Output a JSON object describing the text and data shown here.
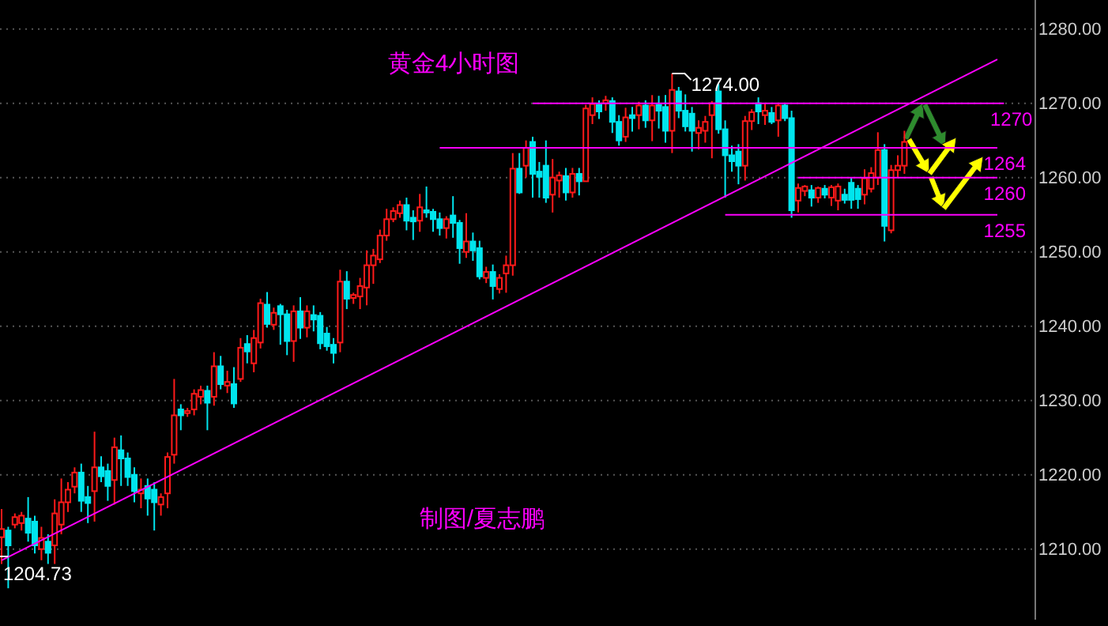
{
  "chart_data": {
    "type": "candlestick",
    "title": "黄金4小时图",
    "categories": [
      null,
      null,
      null,
      null,
      null,
      null,
      null,
      null,
      null,
      null,
      null,
      null,
      null,
      null,
      null,
      null,
      null,
      null,
      null,
      null,
      null,
      null,
      null,
      null,
      null,
      null,
      null,
      null,
      null,
      null,
      null,
      null,
      null,
      null,
      null,
      null,
      null,
      null,
      null,
      null,
      null,
      null,
      null,
      null,
      null,
      null,
      null,
      null,
      null,
      null,
      null,
      null,
      null,
      null,
      null,
      null,
      null,
      null,
      null,
      null,
      null,
      null,
      null,
      null,
      null,
      null,
      null,
      null,
      null,
      null,
      null,
      null,
      null,
      null,
      null,
      null,
      null,
      null,
      null,
      null,
      null,
      null,
      null,
      null,
      null,
      null,
      null,
      null,
      null,
      null,
      null,
      null,
      null,
      null,
      null,
      null,
      null,
      null,
      null,
      null,
      null,
      null,
      null,
      null,
      null,
      null,
      null,
      null,
      null,
      null,
      null,
      null,
      null,
      null,
      null,
      null,
      null,
      null,
      null,
      null,
      null,
      null,
      null,
      null,
      null,
      null,
      null,
      null,
      null,
      null,
      null,
      null,
      null,
      null,
      null,
      null,
      null,
      null,
      null,
      null,
      null,
      null,
      null,
      null,
      null,
      null,
      null,
      null,
      null,
      null,
      null,
      null,
      null,
      null,
      null,
      null
    ],
    "ohlc": [
      [
        1211.6,
        1215.4,
        1208,
        1212.7
      ],
      [
        1212.5,
        1213,
        1204.73,
        1210.5
      ],
      [
        1213.3,
        1214.8,
        1212.8,
        1214.3
      ],
      [
        1213.5,
        1215,
        1212.5,
        1214.5
      ],
      [
        1214.1,
        1217,
        1211,
        1212.2
      ],
      [
        1213.7,
        1214.5,
        1209.4,
        1210.5
      ],
      [
        1210,
        1213,
        1208.5,
        1211.5
      ],
      [
        1211,
        1212,
        1208,
        1209.5
      ],
      [
        1210.5,
        1216.7,
        1208,
        1214.8
      ],
      [
        1213.3,
        1219.5,
        1212,
        1216.3
      ],
      [
        1216.3,
        1219,
        1215,
        1218
      ],
      [
        1218.4,
        1221,
        1217.5,
        1220.3
      ],
      [
        1220.3,
        1221.5,
        1215,
        1216.5
      ],
      [
        1217,
        1218.5,
        1213.5,
        1216.2
      ],
      [
        1217.8,
        1225.8,
        1213.7,
        1221
      ],
      [
        1221,
        1222.5,
        1219,
        1219.8
      ],
      [
        1220.5,
        1221.5,
        1216.5,
        1218.5
      ],
      [
        1219.3,
        1225,
        1216,
        1223.7
      ],
      [
        1223.3,
        1225.3,
        1218.5,
        1222.2
      ],
      [
        1222.2,
        1223,
        1218.5,
        1219.7
      ],
      [
        1220,
        1221,
        1216.3,
        1217.8
      ],
      [
        1217.5,
        1219.5,
        1215.5,
        1218
      ],
      [
        1218.5,
        1219.5,
        1214.5,
        1216.8
      ],
      [
        1218,
        1219,
        1212.5,
        1216.3
      ],
      [
        1216,
        1217.5,
        1214.5,
        1217
      ],
      [
        1217.5,
        1223,
        1215.5,
        1222.4
      ],
      [
        1222.7,
        1232.9,
        1221.5,
        1228
      ],
      [
        1228.8,
        1229.5,
        1226,
        1228
      ],
      [
        1228.3,
        1229,
        1227.8,
        1228.6
      ],
      [
        1228.8,
        1231.5,
        1228,
        1230.9
      ],
      [
        1230.5,
        1232,
        1229.5,
        1231.4
      ],
      [
        1231.3,
        1232,
        1226,
        1229.7
      ],
      [
        1230.5,
        1236.5,
        1229.3,
        1234.6
      ],
      [
        1234.6,
        1236,
        1231.5,
        1232.2
      ],
      [
        1232,
        1234,
        1231,
        1232.5
      ],
      [
        1232.2,
        1234.5,
        1229,
        1229.6
      ],
      [
        1232.9,
        1238.4,
        1232.5,
        1237.1
      ],
      [
        1237.6,
        1238.8,
        1235,
        1236.6
      ],
      [
        1235,
        1239.5,
        1233.8,
        1238.4
      ],
      [
        1237.8,
        1243.7,
        1237,
        1243.1
      ],
      [
        1242.9,
        1244.6,
        1239.8,
        1240.3
      ],
      [
        1240.2,
        1242.5,
        1239.5,
        1241.8
      ],
      [
        1242.7,
        1243,
        1237.5,
        1241.6
      ],
      [
        1241.6,
        1242.2,
        1236.1,
        1238
      ],
      [
        1238,
        1242.8,
        1235.2,
        1242
      ],
      [
        1242,
        1243.9,
        1238.3,
        1239.8
      ],
      [
        1239.8,
        1242.8,
        1238.5,
        1242
      ],
      [
        1241.5,
        1242.8,
        1239.3,
        1240.9
      ],
      [
        1241.4,
        1241.9,
        1236.9,
        1237.7
      ],
      [
        1239,
        1239.9,
        1236.7,
        1237.3
      ],
      [
        1237.5,
        1238.4,
        1235,
        1236.4
      ],
      [
        1237.8,
        1247.6,
        1236.5,
        1246
      ],
      [
        1246,
        1247.4,
        1242.3,
        1243.7
      ],
      [
        1243.8,
        1244.5,
        1243,
        1244.2
      ],
      [
        1244,
        1246.5,
        1242.3,
        1245.4
      ],
      [
        1245.2,
        1250.2,
        1242.8,
        1248.2
      ],
      [
        1248.2,
        1250.4,
        1245.7,
        1249.5
      ],
      [
        1249,
        1253,
        1248.5,
        1252.2
      ],
      [
        1252.2,
        1255.8,
        1251.5,
        1254.4
      ],
      [
        1254.4,
        1256,
        1254,
        1255.5
      ],
      [
        1255.2,
        1256.9,
        1254.6,
        1256.3
      ],
      [
        1256.3,
        1257.3,
        1252.9,
        1254.2
      ],
      [
        1254.6,
        1255.6,
        1251.6,
        1254.1
      ],
      [
        1254.2,
        1257.8,
        1252.7,
        1256
      ],
      [
        1255.6,
        1258.8,
        1254.6,
        1255.3
      ],
      [
        1255.4,
        1255.8,
        1252.7,
        1254.4
      ],
      [
        1254.4,
        1255.3,
        1252.2,
        1253.2
      ],
      [
        1253.2,
        1254.8,
        1251.8,
        1254.4
      ],
      [
        1254.9,
        1257.5,
        1251.9,
        1253.9
      ],
      [
        1253.9,
        1254.3,
        1248.4,
        1250.5
      ],
      [
        1250,
        1255.2,
        1249.2,
        1251.4
      ],
      [
        1251.4,
        1252.6,
        1248.8,
        1250.2
      ],
      [
        1250.5,
        1251.5,
        1246.3,
        1246.7
      ],
      [
        1246.5,
        1248,
        1245.8,
        1247.3
      ],
      [
        1247.3,
        1248.3,
        1243.6,
        1245.4
      ],
      [
        1245,
        1247,
        1244.4,
        1246.5
      ],
      [
        1247.1,
        1249.5,
        1244.5,
        1248.2
      ],
      [
        1248.2,
        1263.3,
        1246.8,
        1261.2
      ],
      [
        1261.2,
        1263.3,
        1257.8,
        1258
      ],
      [
        1261.6,
        1265,
        1260,
        1264
      ],
      [
        1264.8,
        1265.5,
        1257.3,
        1260.5
      ],
      [
        1260.8,
        1262.1,
        1257.3,
        1260.1
      ],
      [
        1261.6,
        1265,
        1256.6,
        1257.3
      ],
      [
        1257.7,
        1262.5,
        1255.3,
        1260
      ],
      [
        1259.6,
        1260.8,
        1257.3,
        1260.3
      ],
      [
        1260.2,
        1261.3,
        1256.9,
        1258
      ],
      [
        1258,
        1261.3,
        1257.3,
        1260.5
      ],
      [
        1260.5,
        1261.3,
        1257.6,
        1259.5
      ],
      [
        1259.5,
        1269.8,
        1259.5,
        1269.3
      ],
      [
        1268.4,
        1270.8,
        1267.2,
        1269.9
      ],
      [
        1269.8,
        1270.4,
        1267.9,
        1268.9
      ],
      [
        1270,
        1271,
        1269,
        1270.4
      ],
      [
        1270.3,
        1270.8,
        1266,
        1267.5
      ],
      [
        1267.5,
        1268.4,
        1264.3,
        1265
      ],
      [
        1265.5,
        1269.4,
        1264.8,
        1268.1
      ],
      [
        1268.4,
        1269.5,
        1266.2,
        1268
      ],
      [
        1268.4,
        1270.2,
        1266.5,
        1269.7
      ],
      [
        1269.7,
        1270.4,
        1266.7,
        1267.7
      ],
      [
        1267.7,
        1271.1,
        1264.9,
        1269.7
      ],
      [
        1269.8,
        1271,
        1266.6,
        1269
      ],
      [
        1269.5,
        1271.1,
        1264.7,
        1266.3
      ],
      [
        1266.3,
        1274.0,
        1263.3,
        1271.8
      ],
      [
        1271.6,
        1272.2,
        1268,
        1269
      ],
      [
        1269,
        1271.2,
        1266.2,
        1266.9
      ],
      [
        1268.6,
        1269.5,
        1263.5,
        1266.3
      ],
      [
        1266,
        1267.7,
        1263.8,
        1266.7
      ],
      [
        1266.3,
        1268.3,
        1264.7,
        1267.5
      ],
      [
        1268.4,
        1270.3,
        1262.6,
        1270
      ],
      [
        1271.6,
        1272.6,
        1265.9,
        1266.5
      ],
      [
        1266.5,
        1267.7,
        1257.3,
        1263
      ],
      [
        1263,
        1264.3,
        1260.8,
        1262.2
      ],
      [
        1263.5,
        1264.5,
        1259.1,
        1261.6
      ],
      [
        1261.6,
        1268.3,
        1259.6,
        1267.6
      ],
      [
        1267.6,
        1269.2,
        1266.4,
        1268.8
      ],
      [
        1270,
        1270.8,
        1267.2,
        1268.9
      ],
      [
        1268.4,
        1270,
        1267.1,
        1269
      ],
      [
        1268.7,
        1269.5,
        1267.2,
        1267.5
      ],
      [
        1267.7,
        1270,
        1265.5,
        1269.7
      ],
      [
        1269.7,
        1270,
        1267.6,
        1268
      ],
      [
        1268,
        1269,
        1254.6,
        1255.6
      ],
      [
        1256.9,
        1259.2,
        1255.3,
        1258.6
      ],
      [
        1258.2,
        1259,
        1257.5,
        1258.8
      ],
      [
        1258.3,
        1259,
        1256.1,
        1257.3
      ],
      [
        1257.3,
        1258.8,
        1256.6,
        1258.6
      ],
      [
        1258.5,
        1259,
        1257.2,
        1257.7
      ],
      [
        1257.3,
        1259,
        1256.2,
        1258.7
      ],
      [
        1256.9,
        1259.2,
        1255.6,
        1258.8
      ],
      [
        1257.7,
        1258.5,
        1256.5,
        1257
      ],
      [
        1259.3,
        1260,
        1255.8,
        1257
      ],
      [
        1258.5,
        1259,
        1255.8,
        1257.1
      ],
      [
        1257.7,
        1261.1,
        1256.4,
        1259.9
      ],
      [
        1258.5,
        1261.4,
        1258,
        1260.6
      ],
      [
        1260,
        1266.1,
        1259,
        1263.7
      ],
      [
        1263.7,
        1264.5,
        1251.4,
        1253.5
      ],
      [
        1252.9,
        1261.7,
        1252.5,
        1261
      ],
      [
        1261,
        1263,
        1260,
        1261.6
      ],
      [
        1261.6,
        1266.3,
        1260.5,
        1264.8
      ],
      null,
      null,
      null,
      null,
      null,
      null,
      null,
      null,
      null,
      null,
      null,
      null,
      null,
      null,
      null,
      null,
      null,
      null,
      null
    ],
    "series": [
      {
        "type": "line",
        "name": "1270",
        "color": "#ff00ff",
        "values": [
          null,
          null,
          null,
          null,
          null,
          null,
          null,
          null,
          null,
          null,
          null,
          null,
          null,
          null,
          null,
          null,
          null,
          null,
          null,
          null,
          null,
          null,
          null,
          null,
          null,
          null,
          null,
          null,
          null,
          null,
          null,
          null,
          null,
          null,
          null,
          null,
          null,
          null,
          null,
          null,
          null,
          null,
          null,
          null,
          null,
          null,
          null,
          null,
          null,
          null,
          null,
          null,
          null,
          null,
          null,
          null,
          null,
          null,
          null,
          null,
          null,
          null,
          null,
          null,
          null,
          null,
          null,
          null,
          null,
          null,
          null,
          null,
          null,
          null,
          null,
          null,
          null,
          null,
          null,
          null,
          1270,
          1270,
          1270,
          1270,
          1270,
          1270,
          1270,
          1270,
          1270,
          1270,
          1270,
          1270,
          1270,
          1270,
          1270,
          1270,
          1270,
          1270,
          1270,
          1270,
          1270,
          1270,
          1270,
          1270,
          1270,
          1270,
          1270,
          1270,
          1270,
          1270,
          1270,
          1270,
          1270,
          1270,
          1270,
          1270,
          1270,
          1270,
          1270,
          1270,
          1270,
          1270,
          1270,
          1270,
          1270,
          1270,
          1270,
          1270,
          1270,
          1270,
          1270,
          1270,
          1270,
          1270,
          1270,
          1270,
          1270,
          1270,
          1270,
          1270,
          1270,
          1270,
          1270,
          1270,
          1270,
          1270,
          1270,
          1270,
          1270,
          1270,
          1270,
          1270,
          null,
          null,
          null,
          null
        ]
      },
      {
        "type": "line",
        "name": "1264",
        "color": "#ff00ff",
        "values": [
          null,
          null,
          null,
          null,
          null,
          null,
          null,
          null,
          null,
          null,
          null,
          null,
          null,
          null,
          null,
          null,
          null,
          null,
          null,
          null,
          null,
          null,
          null,
          null,
          null,
          null,
          null,
          null,
          null,
          null,
          null,
          null,
          null,
          null,
          null,
          null,
          null,
          null,
          null,
          null,
          null,
          null,
          null,
          null,
          null,
          null,
          null,
          null,
          null,
          null,
          null,
          null,
          null,
          null,
          null,
          null,
          null,
          null,
          null,
          null,
          null,
          null,
          null,
          null,
          null,
          null,
          1264,
          1264,
          1264,
          1264,
          1264,
          1264,
          1264,
          1264,
          1264,
          1264,
          1264,
          1264,
          1264,
          1264,
          1264,
          1264,
          1264,
          1264,
          1264,
          1264,
          1264,
          1264,
          1264,
          1264,
          1264,
          1264,
          1264,
          1264,
          1264,
          1264,
          1264,
          1264,
          1264,
          1264,
          1264,
          1264,
          1264,
          1264,
          1264,
          1264,
          1264,
          1264,
          1264,
          1264,
          1264,
          1264,
          1264,
          1264,
          1264,
          1264,
          1264,
          1264,
          1264,
          1264,
          1264,
          1264,
          1264,
          1264,
          1264,
          1264,
          1264,
          1264,
          1264,
          1264,
          1264,
          1264,
          1264,
          1264,
          1264,
          1264,
          1264,
          1264,
          1264,
          1264,
          1264,
          1264,
          1264,
          1264,
          1264,
          1264,
          1264,
          1264,
          1264,
          1264,
          1264,
          null,
          null,
          null,
          null,
          null
        ]
      },
      {
        "type": "line",
        "name": "1260",
        "color": "#ff00ff",
        "values": [
          null,
          null,
          null,
          null,
          null,
          null,
          null,
          null,
          null,
          null,
          null,
          null,
          null,
          null,
          null,
          null,
          null,
          null,
          null,
          null,
          null,
          null,
          null,
          null,
          null,
          null,
          null,
          null,
          null,
          null,
          null,
          null,
          null,
          null,
          null,
          null,
          null,
          null,
          null,
          null,
          null,
          null,
          null,
          null,
          null,
          null,
          null,
          null,
          null,
          null,
          null,
          null,
          null,
          null,
          null,
          null,
          null,
          null,
          null,
          null,
          null,
          null,
          null,
          null,
          null,
          null,
          null,
          null,
          null,
          null,
          null,
          null,
          null,
          null,
          null,
          null,
          null,
          null,
          null,
          null,
          null,
          null,
          null,
          null,
          null,
          null,
          null,
          null,
          null,
          null,
          null,
          null,
          null,
          null,
          null,
          null,
          null,
          null,
          null,
          null,
          null,
          null,
          null,
          null,
          null,
          null,
          null,
          null,
          null,
          null,
          null,
          null,
          null,
          null,
          null,
          null,
          null,
          null,
          null,
          null,
          1260,
          1260,
          1260,
          1260,
          1260,
          1260,
          1260,
          1260,
          1260,
          1260,
          1260,
          1260,
          1260,
          1260,
          1260,
          1260,
          1260,
          1260,
          1260,
          1260,
          1260,
          1260,
          1260,
          1260,
          1260,
          1260,
          1260,
          1260,
          1260,
          1260,
          1260,
          null,
          null,
          null,
          null,
          null
        ]
      },
      {
        "type": "line",
        "name": "1255",
        "color": "#ff00ff",
        "values": [
          null,
          null,
          null,
          null,
          null,
          null,
          null,
          null,
          null,
          null,
          null,
          null,
          null,
          null,
          null,
          null,
          null,
          null,
          null,
          null,
          null,
          null,
          null,
          null,
          null,
          null,
          null,
          null,
          null,
          null,
          null,
          null,
          null,
          null,
          null,
          null,
          null,
          null,
          null,
          null,
          null,
          null,
          null,
          null,
          null,
          null,
          null,
          null,
          null,
          null,
          null,
          null,
          null,
          null,
          null,
          null,
          null,
          null,
          null,
          null,
          null,
          null,
          null,
          null,
          null,
          null,
          null,
          null,
          null,
          null,
          null,
          null,
          null,
          null,
          null,
          null,
          null,
          null,
          null,
          null,
          null,
          null,
          null,
          null,
          null,
          null,
          null,
          null,
          null,
          null,
          null,
          null,
          null,
          null,
          null,
          null,
          null,
          null,
          null,
          null,
          null,
          null,
          null,
          null,
          null,
          null,
          null,
          null,
          null,
          1255,
          1255,
          1255,
          1255,
          1255,
          1255,
          1255,
          1255,
          1255,
          1255,
          1255,
          1255,
          1255,
          1255,
          1255,
          1255,
          1255,
          1255,
          1255,
          1255,
          1255,
          1255,
          1255,
          1255,
          1255,
          1255,
          1255,
          1255,
          1255,
          1255,
          1255,
          1255,
          1255,
          1255,
          1255,
          1255,
          1255,
          1255,
          1255,
          1255,
          1255,
          1255,
          null,
          null,
          null,
          null,
          null
        ]
      },
      {
        "type": "line",
        "color": "#ff00ff",
        "values": [
          1208.5,
          null,
          null,
          null,
          null,
          null,
          null,
          null,
          null,
          null,
          null,
          null,
          null,
          null,
          null,
          null,
          null,
          null,
          null,
          null,
          null,
          null,
          null,
          null,
          null,
          null,
          null,
          null,
          null,
          null,
          null,
          null,
          null,
          null,
          null,
          null,
          null,
          null,
          null,
          null,
          null,
          null,
          null,
          null,
          null,
          null,
          null,
          null,
          null,
          null,
          null,
          null,
          null,
          null,
          null,
          null,
          null,
          null,
          null,
          null,
          null,
          null,
          null,
          null,
          null,
          null,
          null,
          null,
          null,
          null,
          null,
          null,
          null,
          null,
          null,
          null,
          null,
          null,
          null,
          null,
          null,
          null,
          null,
          null,
          null,
          null,
          null,
          null,
          null,
          null,
          null,
          null,
          null,
          null,
          null,
          null,
          null,
          null,
          null,
          null,
          null,
          null,
          null,
          null,
          null,
          null,
          null,
          null,
          null,
          null,
          null,
          null,
          null,
          null,
          null,
          null,
          null,
          null,
          null,
          null,
          null,
          null,
          null,
          null,
          null,
          null,
          null,
          null,
          null,
          null,
          null,
          null,
          null,
          null,
          null,
          null,
          null,
          null,
          null,
          null,
          null,
          null,
          null,
          null,
          null,
          null,
          null,
          null,
          null,
          null,
          1275.9,
          null,
          null,
          null,
          null,
          null
        ]
      }
    ],
    "ylim": [
      1200.5,
      1283.9
    ],
    "yticks": [
      {
        "value": 1210,
        "label": "1210.00"
      },
      {
        "value": 1220,
        "label": "1220.00"
      },
      {
        "value": 1230,
        "label": "1230.00"
      },
      {
        "value": 1240,
        "label": "1240.00"
      },
      {
        "value": 1250,
        "label": "1250.00"
      },
      {
        "value": 1260,
        "label": "1260.00"
      },
      {
        "value": 1270,
        "label": "1270.00"
      },
      {
        "value": 1280,
        "label": "1280.00"
      }
    ],
    "tick_labels": "y",
    "grid": "y",
    "annotations": [
      "1274.00",
      "1204.73",
      "制图/夏志鹏"
    ]
  }
}
